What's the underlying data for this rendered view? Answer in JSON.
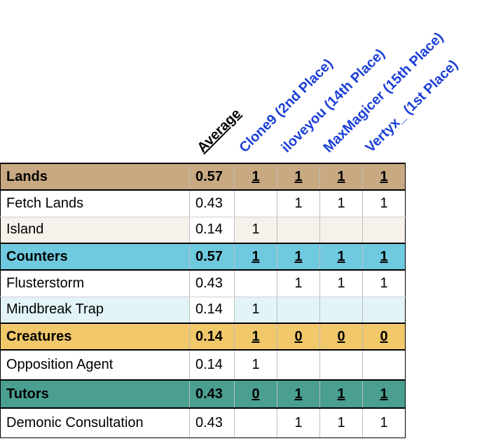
{
  "headers": {
    "average": "Average",
    "players": [
      "Clone9 (2nd Place)",
      "iloveyou (14th Place)",
      "MaxMagicer (15th Place)",
      "Vertyx_ (1st Place)"
    ]
  },
  "colors": {
    "lands": "#c8a982",
    "lands_light": "#f6f1ea",
    "counters": "#6fcadf",
    "counters_light": "#e2f4f8",
    "creatures": "#f1c86a",
    "creatures_light": "#fdf6e3",
    "tutors": "#4a9f91",
    "tutors_light": "#ffffff",
    "header_blue": "#1a3fd6"
  },
  "rows": [
    {
      "kind": "group",
      "color": "lands",
      "name": "Lands",
      "avg": "0.57",
      "vals": [
        "1",
        "1",
        "1",
        "1"
      ]
    },
    {
      "kind": "item",
      "shade": "",
      "name": "Fetch Lands",
      "avg": "0.43",
      "vals": [
        "",
        "1",
        "1",
        "1"
      ]
    },
    {
      "kind": "item",
      "shade": "lands_light",
      "name": "Island",
      "avg": "0.14",
      "vals": [
        "1",
        "",
        "",
        ""
      ]
    },
    {
      "kind": "group",
      "color": "counters",
      "name": "Counters",
      "avg": "0.57",
      "vals": [
        "1",
        "1",
        "1",
        "1"
      ]
    },
    {
      "kind": "item",
      "shade": "",
      "name": "Flusterstorm",
      "avg": "0.43",
      "vals": [
        "",
        "1",
        "1",
        "1"
      ]
    },
    {
      "kind": "item",
      "shade": "counters_light",
      "name": "Mindbreak Trap",
      "avg": "0.14",
      "vals": [
        "1",
        "",
        "",
        ""
      ]
    },
    {
      "kind": "group",
      "color": "creatures",
      "name": "Creatures",
      "avg": "0.14",
      "vals": [
        "1",
        "0",
        "0",
        "0"
      ]
    },
    {
      "kind": "item",
      "shade": "",
      "name": "Opposition Agent",
      "avg": "0.14",
      "vals": [
        "1",
        "",
        "",
        ""
      ]
    },
    {
      "kind": "group",
      "color": "tutors",
      "name": "Tutors",
      "avg": "0.43",
      "vals": [
        "0",
        "1",
        "1",
        "1"
      ]
    },
    {
      "kind": "item",
      "shade": "",
      "name": "Demonic Consultation",
      "avg": "0.43",
      "vals": [
        "",
        "1",
        "1",
        "1"
      ]
    }
  ]
}
